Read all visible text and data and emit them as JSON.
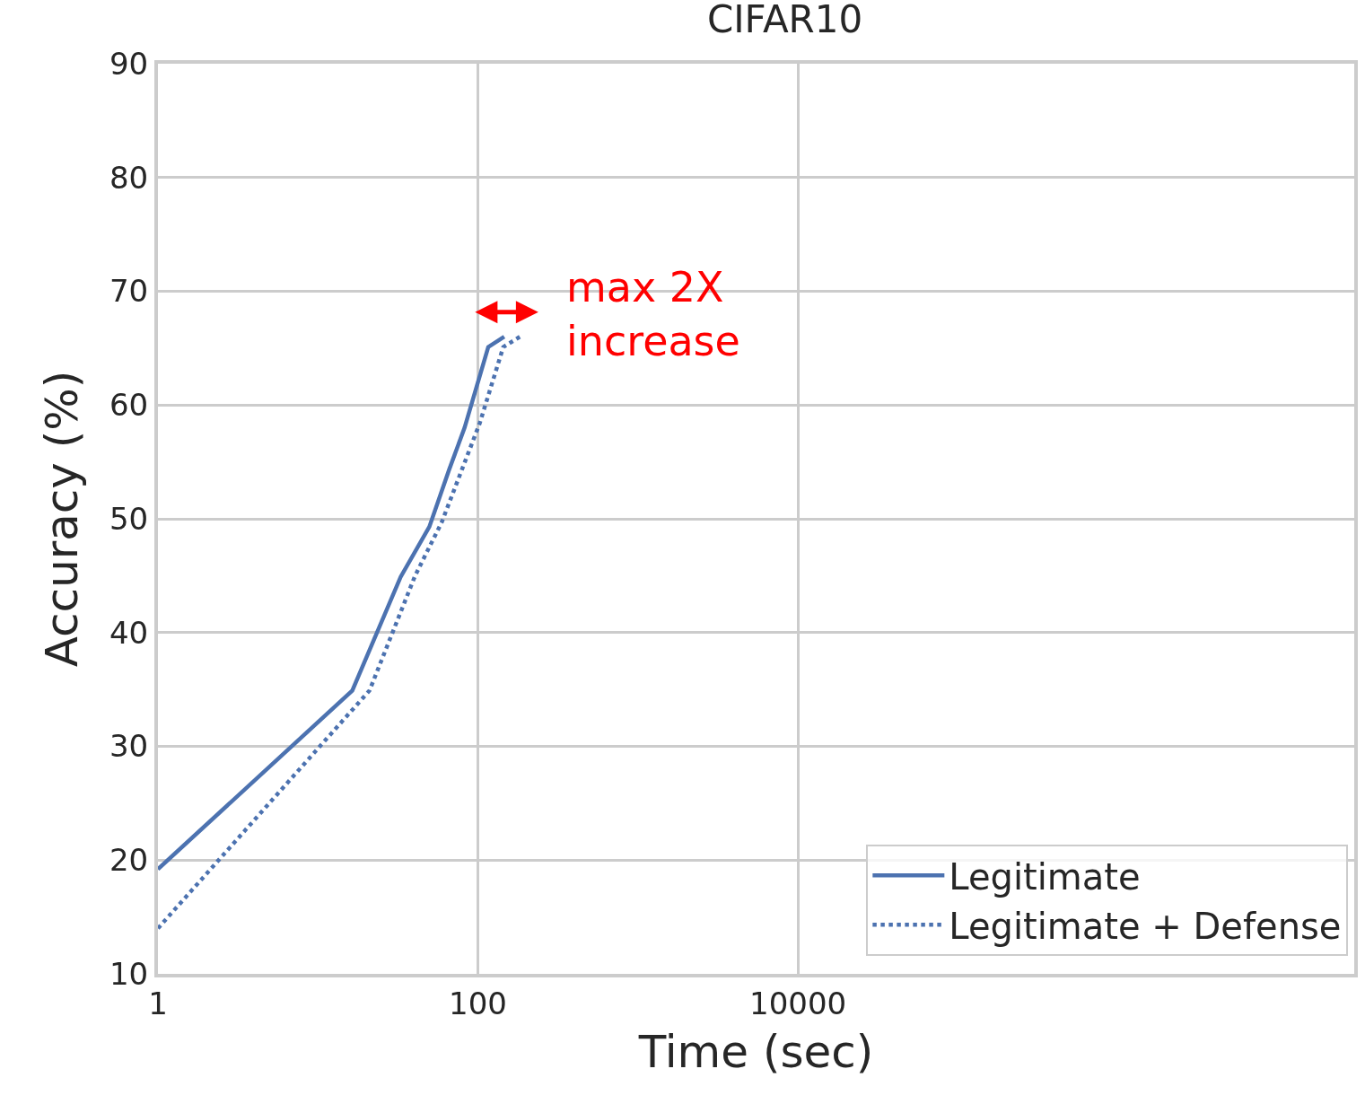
{
  "chart_data": {
    "type": "line",
    "title": "CIFAR10",
    "xlabel": "Time (sec)",
    "ylabel": "Accuracy (%)",
    "series": [
      {
        "name": "Legitimate",
        "color": "#4c72b0",
        "line_style": "solid",
        "x": [
          1,
          16.4,
          32.9,
          49.7,
          66,
          82.5,
          116,
          146
        ],
        "values": [
          19.2,
          34.9,
          44.9,
          49.3,
          54.3,
          58.0,
          65.1,
          66.0
        ]
      },
      {
        "name": "Legitimate + Defense",
        "color": "#4c72b0",
        "line_style": "dotted",
        "x": [
          1,
          21,
          40.5,
          59.4,
          102.6,
          144,
          183
        ],
        "values": [
          14.0,
          34.9,
          45.0,
          49.7,
          58.4,
          65.1,
          66.0
        ]
      }
    ],
    "annotations": [
      "max 2X\nincrease"
    ],
    "log": "x",
    "xlim": [
      1,
      30000000
    ],
    "xticks": [
      1,
      100,
      10000
    ],
    "ylim": [
      10,
      90
    ],
    "yticks": [
      10,
      20,
      30,
      40,
      50,
      60,
      70,
      80,
      90
    ],
    "grid": true,
    "legend": "bottom right",
    "marker": "none"
  }
}
